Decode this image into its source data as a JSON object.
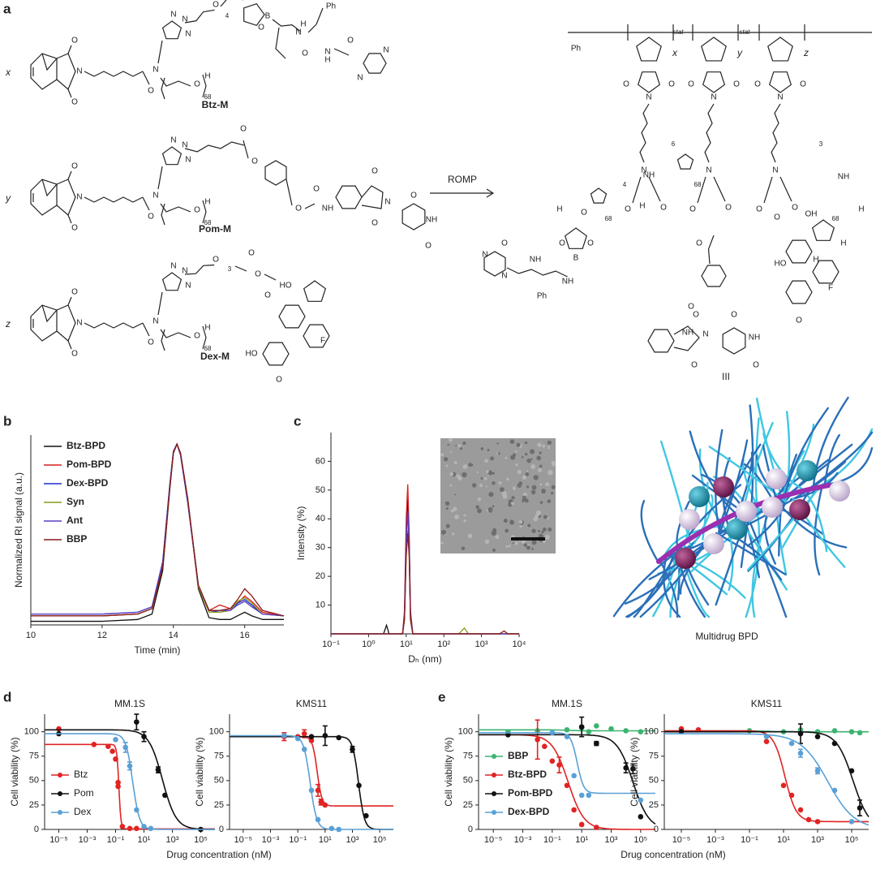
{
  "panel_labels": [
    "a",
    "b",
    "c",
    "d",
    "e"
  ],
  "structures": {
    "monomers": [
      {
        "var": "x",
        "name": "Btz-M"
      },
      {
        "var": "y",
        "name": "Pom-M"
      },
      {
        "var": "z",
        "name": "Dex-M"
      }
    ],
    "arrow": "ROMP",
    "polymer": {
      "end": "Ph",
      "vars": [
        "x",
        "y",
        "z"
      ],
      "stat": "stat",
      "index": "III"
    },
    "atoms": {
      "n": "N",
      "o": "O",
      "h": "H",
      "b": "B",
      "f": "F",
      "oh": "OH",
      "ho": "HO",
      "nh": "NH",
      "ph": "Ph"
    },
    "repeats": [
      "68",
      "4",
      "3",
      "6"
    ]
  },
  "rendering": {
    "label": "Multidrug BPD"
  },
  "chart_data": [
    {
      "type": "line",
      "x_label": "Time (min)",
      "y_label": "Normalized RI signal (a.u.)",
      "x": [
        10,
        11,
        12,
        13,
        13.4,
        13.7,
        13.9,
        14.0,
        14.1,
        14.2,
        14.4,
        14.7,
        15.0,
        15.3,
        15.6,
        15.8,
        16.0,
        16.2,
        16.5,
        17.1
      ],
      "xlim": [
        10,
        17.1
      ],
      "xticks": [
        10,
        12,
        14,
        16
      ],
      "ylim": [
        0,
        1.05
      ],
      "legend": "upper-left",
      "series": [
        {
          "name": "Btz-BPD",
          "color": "#111111",
          "values": [
            0.02,
            0.02,
            0.02,
            0.03,
            0.06,
            0.3,
            0.75,
            0.95,
            1.0,
            0.95,
            0.7,
            0.2,
            0.04,
            0.03,
            0.03,
            0.05,
            0.07,
            0.05,
            0.03,
            0.03
          ]
        },
        {
          "name": "Pom-BPD",
          "color": "#d62020",
          "values": [
            0.05,
            0.05,
            0.05,
            0.06,
            0.09,
            0.33,
            0.77,
            0.96,
            1.0,
            0.94,
            0.68,
            0.21,
            0.08,
            0.11,
            0.09,
            0.12,
            0.16,
            0.13,
            0.07,
            0.05
          ]
        },
        {
          "name": "Dex-BPD",
          "color": "#1f2fd0",
          "values": [
            0.06,
            0.06,
            0.06,
            0.07,
            0.1,
            0.35,
            0.78,
            0.96,
            1.0,
            0.94,
            0.68,
            0.22,
            0.08,
            0.07,
            0.08,
            0.12,
            0.14,
            0.11,
            0.06,
            0.05
          ]
        },
        {
          "name": "Syn",
          "color": "#8a9a1a",
          "values": [
            0.05,
            0.05,
            0.05,
            0.06,
            0.09,
            0.32,
            0.76,
            0.95,
            1.0,
            0.95,
            0.7,
            0.21,
            0.07,
            0.07,
            0.08,
            0.13,
            0.15,
            0.12,
            0.06,
            0.05
          ]
        },
        {
          "name": "Ant",
          "color": "#5a3fc0",
          "values": [
            0.06,
            0.06,
            0.06,
            0.07,
            0.1,
            0.34,
            0.77,
            0.96,
            1.0,
            0.94,
            0.69,
            0.22,
            0.08,
            0.08,
            0.08,
            0.11,
            0.13,
            0.1,
            0.06,
            0.05
          ]
        },
        {
          "name": "BBP",
          "color": "#8b1a1a",
          "values": [
            0.05,
            0.05,
            0.05,
            0.06,
            0.09,
            0.32,
            0.76,
            0.95,
            1.0,
            0.95,
            0.7,
            0.22,
            0.08,
            0.08,
            0.09,
            0.14,
            0.2,
            0.16,
            0.08,
            0.05
          ]
        }
      ]
    },
    {
      "type": "line",
      "x_label": "Dₕ (nm)",
      "y_label": "Intensity (%)",
      "xscale": "log",
      "x": [
        0.1,
        2.5,
        3,
        3.5,
        8,
        9,
        10,
        11,
        12,
        13,
        15,
        250,
        350,
        450,
        3000,
        4000,
        5000,
        10000
      ],
      "xlim": [
        0.1,
        10000
      ],
      "xticks": [
        {
          "value": 0.1,
          "label": "10⁻¹"
        },
        {
          "value": 1,
          "label": "10⁰"
        },
        {
          "value": 10,
          "label": "10¹"
        },
        {
          "value": 100,
          "label": "10²"
        },
        {
          "value": 1000,
          "label": "10³"
        },
        {
          "value": 10000,
          "label": "10⁴"
        }
      ],
      "ylim": [
        0,
        70
      ],
      "yticks": [
        10,
        20,
        30,
        40,
        50,
        60
      ],
      "series": [
        {
          "color": "#111111",
          "values": [
            0,
            0,
            3,
            0,
            0,
            5,
            30,
            47,
            30,
            5,
            0,
            0,
            0,
            0,
            0,
            0,
            0,
            0
          ]
        },
        {
          "color": "#d62020",
          "values": [
            0,
            0,
            0,
            0,
            0,
            8,
            40,
            52,
            35,
            8,
            0,
            0,
            0,
            0,
            0,
            0,
            0,
            0
          ]
        },
        {
          "color": "#1f2fd0",
          "values": [
            0,
            0,
            0,
            0,
            0,
            6,
            33,
            43,
            33,
            6,
            0,
            0,
            0,
            0,
            0,
            0,
            0,
            0
          ]
        },
        {
          "color": "#8a9a1a",
          "values": [
            0,
            0,
            0,
            0,
            0,
            5,
            28,
            36,
            28,
            5,
            0,
            0,
            2,
            0,
            0,
            0,
            0,
            0
          ]
        },
        {
          "color": "#5a3fc0",
          "values": [
            0,
            0,
            0,
            0,
            0,
            6,
            32,
            42,
            31,
            6,
            0,
            0,
            0,
            0,
            0,
            0,
            0,
            0
          ]
        },
        {
          "color": "#8b1a1a",
          "values": [
            0,
            0,
            0,
            0,
            0,
            5,
            27,
            35,
            27,
            5,
            0,
            0,
            0,
            0,
            0,
            1,
            0,
            0
          ]
        }
      ]
    },
    {
      "type": "dose",
      "title": "MM.1S",
      "y_label": "Cell viability (%)",
      "x_label": "Drug concentration (nM)",
      "xscale": "log",
      "xlim": [
        1e-06,
        1000000
      ],
      "xticks": [
        {
          "value": 1e-05,
          "label": "10⁻⁵"
        },
        {
          "value": 0.001,
          "label": "10⁻³"
        },
        {
          "value": 0.1,
          "label": "10⁻¹"
        },
        {
          "value": 10,
          "label": "10¹"
        },
        {
          "value": 1000,
          "label": "10³"
        },
        {
          "value": 100000,
          "label": "10⁵"
        }
      ],
      "ylim": [
        0,
        118
      ],
      "yticks": [
        0,
        25,
        50,
        75,
        100
      ],
      "legend": "lower-left",
      "series": [
        {
          "name": "Btz",
          "color": "#e02424",
          "x": [
            1e-05,
            0.003,
            0.03,
            0.06,
            0.1,
            0.15,
            0.15,
            0.3,
            1,
            3
          ],
          "values": [
            103,
            87,
            85,
            80,
            72,
            48,
            44,
            3,
            1,
            1
          ],
          "fit": {
            "top": 87,
            "bottom": 0.5,
            "ic50": 0.17,
            "slope": 6
          }
        },
        {
          "name": "Pom",
          "color": "#111111",
          "x": [
            1e-05,
            3,
            10,
            100,
            300,
            100000
          ],
          "values": [
            98,
            110,
            95,
            61,
            35,
            0
          ],
          "errors": [
            null,
            8,
            5,
            3,
            null,
            null
          ],
          "fit": {
            "top": 102,
            "bottom": 0,
            "ic50": 200,
            "slope": 0.9
          }
        },
        {
          "name": "Dex",
          "color": "#5aa0d6",
          "x": [
            0.1,
            0.5,
            1,
            3,
            10,
            30
          ],
          "values": [
            92,
            84,
            65,
            20,
            3,
            1
          ],
          "errors": [
            null,
            5,
            4,
            null,
            null,
            null
          ],
          "fit": {
            "top": 98,
            "bottom": 0,
            "ic50": 1.6,
            "slope": 1.8
          }
        }
      ]
    },
    {
      "type": "dose",
      "title": "KMS11",
      "y_label": "Cell viability (%)",
      "xscale": "log",
      "xlim": [
        1e-06,
        1000000
      ],
      "xticks": [
        {
          "value": 1e-05,
          "label": "10⁻⁵"
        },
        {
          "value": 0.001,
          "label": "10⁻³"
        },
        {
          "value": 0.1,
          "label": "10⁻¹"
        },
        {
          "value": 10,
          "label": "10¹"
        },
        {
          "value": 1000,
          "label": "10³"
        },
        {
          "value": 100000,
          "label": "10⁵"
        }
      ],
      "ylim": [
        0,
        118
      ],
      "yticks": [
        0,
        25,
        50,
        75,
        100
      ],
      "series": [
        {
          "color": "#e02424",
          "x": [
            0.01,
            0.1,
            0.3,
            1,
            3,
            5,
            10
          ],
          "values": [
            95,
            95,
            98,
            91,
            40,
            28,
            25
          ],
          "errors": [
            4,
            null,
            4,
            null,
            6,
            3,
            null
          ],
          "fit": {
            "top": 95,
            "bottom": 24,
            "ic50": 2.6,
            "slope": 2.5
          }
        },
        {
          "color": "#111111",
          "x": [
            1,
            10,
            100,
            1000,
            3000,
            10000
          ],
          "values": [
            95,
            96,
            94,
            82,
            45,
            14
          ],
          "errors": [
            null,
            10,
            null,
            3,
            null,
            null
          ],
          "fit": {
            "top": 95,
            "bottom": 0,
            "ic50": 2800,
            "slope": 2
          }
        },
        {
          "color": "#5aa0d6",
          "x": [
            0.01,
            0.1,
            0.3,
            1,
            3,
            30,
            100
          ],
          "values": [
            96,
            93,
            82,
            40,
            10,
            1,
            0
          ],
          "fit": {
            "top": 96,
            "bottom": 0,
            "ic50": 0.8,
            "slope": 1.8
          }
        }
      ]
    },
    {
      "type": "dose",
      "title": "MM.1S",
      "y_label": "Cell viability (%)",
      "x_label": "Drug concentration (nM)",
      "xscale": "log",
      "xlim": [
        1e-06,
        1000000
      ],
      "xticks": [
        {
          "value": 1e-05,
          "label": "10⁻⁵"
        },
        {
          "value": 0.001,
          "label": "10⁻³"
        },
        {
          "value": 0.1,
          "label": "10⁻¹"
        },
        {
          "value": 10,
          "label": "10¹"
        },
        {
          "value": 1000,
          "label": "10³"
        },
        {
          "value": 100000,
          "label": "10⁵"
        }
      ],
      "ylim": [
        0,
        118
      ],
      "yticks": [
        0,
        25,
        50,
        75,
        100
      ],
      "legend": "lower-left",
      "series": [
        {
          "name": "BBP",
          "color": "#3cb371",
          "x": [
            0.0001,
            0.01,
            1,
            10,
            30,
            100,
            1000,
            10000,
            100000
          ],
          "values": [
            100,
            101,
            102,
            104,
            100,
            106,
            103,
            101,
            100
          ],
          "fit": {
            "top": 102,
            "bottom": 101,
            "ic50": 1,
            "slope": 1
          }
        },
        {
          "name": "Btz-BPD",
          "color": "#e02424",
          "x": [
            0.0001,
            0.01,
            0.03,
            0.1,
            0.3,
            1,
            3,
            10,
            100
          ],
          "values": [
            97,
            92,
            85,
            70,
            66,
            45,
            20,
            5,
            2
          ],
          "errors": [
            null,
            20,
            null,
            null,
            8,
            null,
            null,
            null,
            null
          ],
          "fit": {
            "top": 97,
            "bottom": 0,
            "ic50": 1.2,
            "slope": 0.8
          }
        },
        {
          "name": "Pom-BPD",
          "color": "#111111",
          "x": [
            0.0001,
            10,
            100,
            10000,
            30000,
            100000
          ],
          "values": [
            97,
            105,
            88,
            63,
            62,
            13
          ],
          "errors": [
            null,
            10,
            2,
            5,
            5,
            null
          ],
          "fit": {
            "top": 97,
            "bottom": 0,
            "ic50": 30000,
            "slope": 0.8
          }
        },
        {
          "name": "Dex-BPD",
          "color": "#5aa0d6",
          "x": [
            0.1,
            1,
            3,
            10,
            30,
            100000
          ],
          "values": [
            99,
            95,
            55,
            35,
            35,
            30
          ],
          "fit": {
            "top": 99,
            "bottom": 37,
            "ic50": 5,
            "slope": 2
          }
        }
      ]
    },
    {
      "type": "dose",
      "title": "KMS11",
      "y_label": "Cell viability (%)",
      "xscale": "log",
      "xlim": [
        1e-06,
        1000000
      ],
      "xticks": [
        {
          "value": 1e-05,
          "label": "10⁻⁵"
        },
        {
          "value": 0.001,
          "label": "10⁻³"
        },
        {
          "value": 0.1,
          "label": "10⁻¹"
        },
        {
          "value": 10,
          "label": "10¹"
        },
        {
          "value": 1000,
          "label": "10³"
        },
        {
          "value": 100000,
          "label": "10⁵"
        }
      ],
      "ylim": [
        0,
        118
      ],
      "yticks": [
        0,
        25,
        50,
        75,
        100
      ],
      "series": [
        {
          "color": "#3cb371",
          "x": [
            1e-05,
            0.1,
            10,
            100,
            1000,
            10000,
            100000,
            300000
          ],
          "values": [
            103,
            101,
            100,
            102,
            100,
            101,
            100,
            99
          ],
          "fit": {
            "top": 101,
            "bottom": 100,
            "ic50": 1,
            "slope": 1
          }
        },
        {
          "color": "#e02424",
          "x": [
            1e-05,
            0.0001,
            1,
            10,
            30,
            100,
            300,
            1000
          ],
          "values": [
            103,
            102,
            90,
            45,
            35,
            20,
            10,
            8
          ],
          "fit": {
            "top": 101,
            "bottom": 8,
            "ic50": 12,
            "slope": 1.3
          }
        },
        {
          "color": "#111111",
          "x": [
            1e-05,
            100,
            1000,
            10000,
            100000,
            300000
          ],
          "values": [
            100,
            98,
            95,
            88,
            60,
            22
          ],
          "errors": [
            null,
            10,
            null,
            null,
            null,
            8
          ],
          "fit": {
            "top": 100,
            "bottom": 0,
            "ic50": 120000,
            "slope": 0.9
          }
        },
        {
          "color": "#5aa0d6",
          "x": [
            1,
            30,
            100,
            1000,
            10000,
            100000
          ],
          "values": [
            95,
            88,
            78,
            60,
            40,
            8
          ],
          "errors": [
            null,
            null,
            4,
            3,
            null,
            null
          ],
          "fit": {
            "top": 98,
            "bottom": 0,
            "ic50": 4000,
            "slope": 0.55
          }
        }
      ]
    }
  ]
}
